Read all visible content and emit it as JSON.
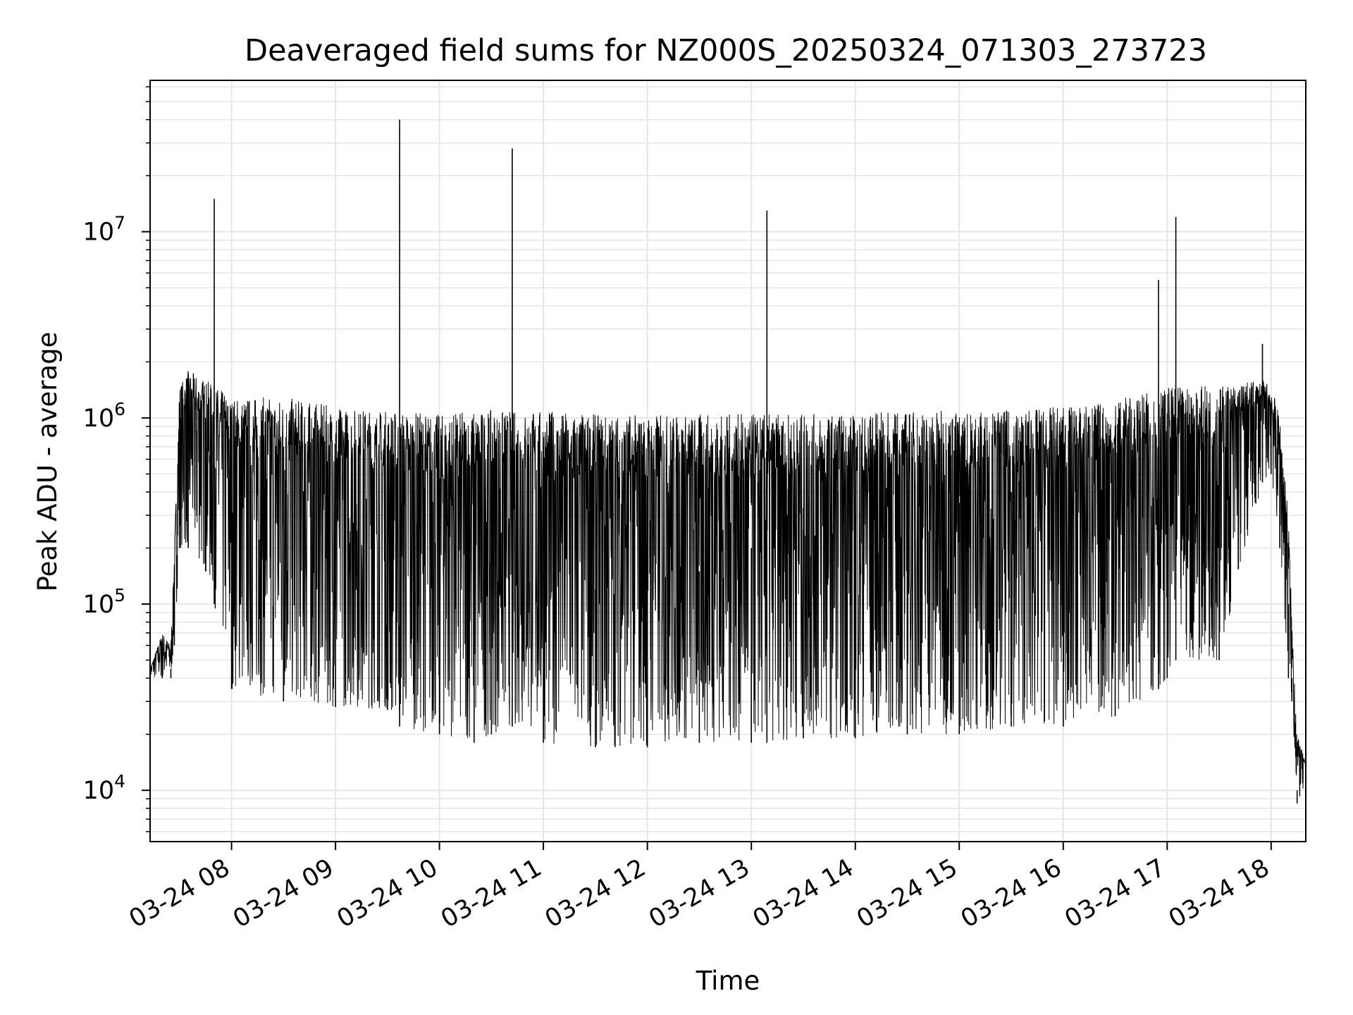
{
  "chart_data": {
    "type": "line",
    "title": "Deaveraged field sums for NZ000S_20250324_071303_273723",
    "xlabel": "Time",
    "ylabel": "Peak ADU - average",
    "yscale": "log",
    "ylim": [
      5300,
      65000000
    ],
    "xlim": [
      "03-24 07:13",
      "03-24 18:20"
    ],
    "grid": "on (major and minor)",
    "line_color": "#000000",
    "x_ticks": [
      "03-24 08",
      "03-24 09",
      "03-24 10",
      "03-24 11",
      "03-24 12",
      "03-24 13",
      "03-24 14",
      "03-24 15",
      "03-24 16",
      "03-24 17",
      "03-24 18"
    ],
    "y_ticks": [
      {
        "base": "10",
        "exp": "4",
        "value": 10000
      },
      {
        "base": "10",
        "exp": "5",
        "value": 100000
      },
      {
        "base": "10",
        "exp": "6",
        "value": 1000000
      },
      {
        "base": "10",
        "exp": "7",
        "value": 10000000
      }
    ],
    "series": [
      {
        "x": [
          "03-24 07:13",
          "03-24 07:20",
          "03-24 07:25",
          "03-24 07:27",
          "03-24 07:30",
          "03-24 07:35",
          "03-24 07:45",
          "03-24 07:50",
          "03-24 08:00",
          "03-24 08:30",
          "03-24 09:00",
          "03-24 09:30",
          "03-24 09:37",
          "03-24 10:00",
          "03-24 10:20",
          "03-24 10:30",
          "03-24 10:42",
          "03-24 11:00",
          "03-24 11:30",
          "03-24 12:00",
          "03-24 12:30",
          "03-24 13:00",
          "03-24 13:09",
          "03-24 13:30",
          "03-24 14:00",
          "03-24 14:30",
          "03-24 15:00",
          "03-24 15:30",
          "03-24 16:00",
          "03-24 16:30",
          "03-24 16:55",
          "03-24 17:00",
          "03-24 17:05",
          "03-24 17:30",
          "03-24 17:55",
          "03-24 18:00",
          "03-24 18:05",
          "03-24 18:10",
          "03-24 18:12",
          "03-24 18:15",
          "03-24 18:20"
        ],
        "y": [
          40000,
          65000,
          45000,
          100000,
          1000000,
          1700000,
          1000000,
          15000000,
          900000,
          700000,
          600000,
          650000,
          40000000,
          400000,
          300000,
          250000,
          28000000,
          150000,
          120000,
          100000,
          150000,
          200000,
          13000000,
          250000,
          300000,
          300000,
          350000,
          400000,
          500000,
          700000,
          5500000,
          900000,
          12000000,
          1100000,
          2500000,
          1200000,
          500000,
          100000,
          40000,
          10000,
          12000
        ],
        "band_low": [
          40000,
          40000,
          40000,
          60000,
          200000,
          200000,
          150000,
          100000,
          35000,
          30000,
          28000,
          27000,
          22000,
          20000,
          18000,
          20000,
          22000,
          18000,
          17000,
          17000,
          18000,
          18000,
          18000,
          19000,
          19000,
          20000,
          20000,
          22000,
          22000,
          25000,
          35000,
          40000,
          50000,
          50000,
          450000,
          500000,
          200000,
          40000,
          30000,
          8500,
          10000
        ],
        "band_high": [
          45000,
          70000,
          60000,
          200000,
          1500000,
          1800000,
          1600000,
          1500000,
          1300000,
          1300000,
          1150000,
          1100000,
          1100000,
          1050000,
          1100000,
          1100000,
          1100000,
          1100000,
          1050000,
          1050000,
          1050000,
          1050000,
          1050000,
          1050000,
          1050000,
          1100000,
          1100000,
          1100000,
          1150000,
          1250000,
          1400000,
          1450000,
          1450000,
          1500000,
          1600000,
          1500000,
          1000000,
          300000,
          80000,
          20000,
          14000
        ]
      }
    ]
  }
}
